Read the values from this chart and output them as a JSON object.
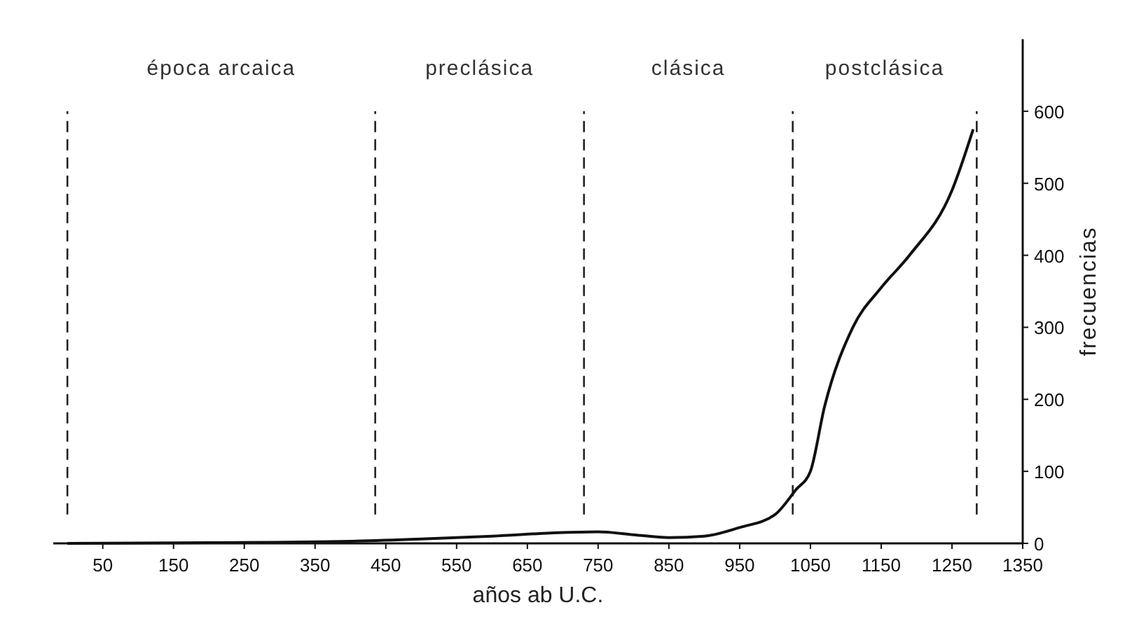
{
  "chart_data": {
    "type": "line",
    "xlabel": "años ab U.C.",
    "ylabel": "frecuencias",
    "x": [
      0,
      200,
      400,
      500,
      600,
      700,
      750,
      800,
      850,
      900,
      950,
      1000,
      1030,
      1050,
      1070,
      1110,
      1150,
      1190,
      1250,
      1280
    ],
    "series": [
      {
        "color": "#111111",
        "values": [
          0,
          1,
          3,
          6,
          10,
          15,
          16,
          12,
          8,
          10,
          22,
          40,
          75,
          100,
          190,
          300,
          355,
          400,
          490,
          575
        ]
      }
    ],
    "xlim": [
      -20,
      1350
    ],
    "xticks": [
      50,
      150,
      250,
      350,
      450,
      550,
      650,
      750,
      850,
      950,
      1050,
      1150,
      1250,
      1350
    ],
    "ylim": [
      0,
      700
    ],
    "yticks": [
      0,
      100,
      200,
      300,
      400,
      500,
      600
    ],
    "ref_lines": [
      {
        "axis": "x",
        "value": 0,
        "line_style": "dashed"
      },
      {
        "axis": "x",
        "value": 435,
        "line_style": "dashed"
      },
      {
        "axis": "x",
        "value": 730,
        "line_style": "dashed"
      },
      {
        "axis": "x",
        "value": 1025,
        "line_style": "dashed"
      },
      {
        "axis": "x",
        "value": 1285,
        "line_style": "dashed"
      }
    ],
    "annotations": [
      "época arcaica",
      "preclásica",
      "clásica",
      "postclásica"
    ],
    "grid": false,
    "line_style": "solid"
  }
}
